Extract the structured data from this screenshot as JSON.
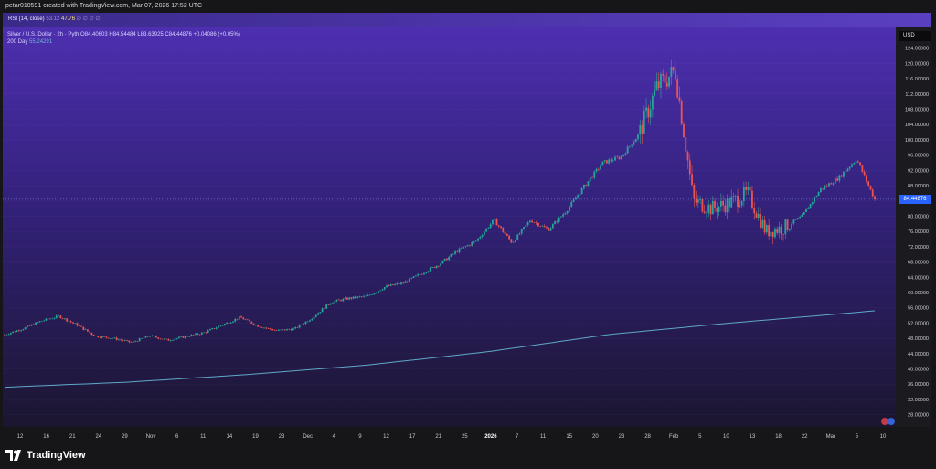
{
  "header": {
    "caption": "petar010591 created with TradingView.com, Mar 07, 2026 17:52 UTC"
  },
  "rsi": {
    "label": "RSI (14, close)",
    "value_dim": "53.12",
    "value": "47.76",
    "icons": "∅ ∅ ∅ ∅"
  },
  "legend": {
    "symbol_line": "Silver / U.S. Dollar · 2h · Pyth  O84.40603  H84.54484  L83.63925  C84.44876  +0.04086 (+0.05%)",
    "ma_label": "200 Day",
    "ma_value": "55.24291"
  },
  "currency": "USD",
  "last_price": "84.44876",
  "brand": "TradingView",
  "colors": {
    "up": "#26a69a",
    "down": "#ef5350",
    "ma": "#5fa8c8",
    "price_tag": "#2962ff"
  },
  "chart_data": {
    "type": "line",
    "title": "Silver / U.S. Dollar · 2h · Pyth",
    "y_ticks": [
      124,
      120,
      116,
      112,
      108,
      104,
      100,
      96,
      92,
      88,
      84,
      80,
      76,
      72,
      68,
      64,
      60,
      56,
      52,
      48,
      44,
      40,
      36,
      32,
      28
    ],
    "y_tick_labels": [
      "124.00000",
      "120.00000",
      "116.00000",
      "112.00000",
      "108.00000",
      "104.00000",
      "100.00000",
      "96.00000",
      "92.00000",
      "88.00000",
      "84.00000",
      "80.00000",
      "76.00000",
      "72.00000",
      "68.00000",
      "64.00000",
      "60.00000",
      "56.00000",
      "52.00000",
      "48.00000",
      "44.00000",
      "40.00000",
      "36.00000",
      "32.00000",
      "28.00000"
    ],
    "ylim": [
      26,
      128
    ],
    "x_labels": [
      "12",
      "16",
      "21",
      "24",
      "29",
      "Nov",
      "6",
      "11",
      "14",
      "19",
      "23",
      "Dec",
      "4",
      "9",
      "12",
      "17",
      "21",
      "25",
      "2026",
      "7",
      "11",
      "15",
      "20",
      "23",
      "28",
      "Feb",
      "5",
      "10",
      "13",
      "18",
      "22",
      "Mar",
      "5",
      "10"
    ],
    "series": [
      {
        "name": "Silver / U.S. Dollar",
        "x": [
          0,
          3,
          6,
          9,
          12,
          15,
          18,
          21,
          24,
          27,
          30,
          33,
          36,
          39,
          42,
          45,
          48,
          51,
          54,
          57,
          60,
          63,
          66,
          69,
          72,
          75,
          78,
          81,
          84,
          87,
          90,
          93,
          96,
          99,
          102,
          105,
          108,
          111,
          114,
          117,
          120,
          123,
          126,
          129,
          132,
          135,
          138,
          141,
          144
        ],
        "values": [
          49.0,
          50.5,
          52.5,
          53.8,
          51.5,
          48.6,
          48.0,
          46.9,
          48.7,
          47.5,
          48.5,
          49.5,
          51.5,
          53.5,
          51.2,
          50.0,
          50.5,
          53.5,
          57.5,
          58.5,
          59.0,
          61.5,
          62.5,
          65.0,
          67.5,
          71.0,
          73.5,
          79.0,
          73.0,
          79.0,
          76.5,
          81.5,
          88.0,
          94.0,
          95.5,
          101.5,
          114.0,
          118.0,
          84.0,
          82.0,
          83.5,
          86.0,
          76.0,
          77.0,
          80.0,
          87.0,
          90.0,
          95.0,
          84.4
        ]
      },
      {
        "name": "200 Day",
        "x": [
          0,
          20,
          40,
          60,
          80,
          100,
          120,
          144
        ],
        "values": [
          35.2,
          36.5,
          38.5,
          41.0,
          44.5,
          49.0,
          52.0,
          55.2
        ]
      }
    ]
  }
}
